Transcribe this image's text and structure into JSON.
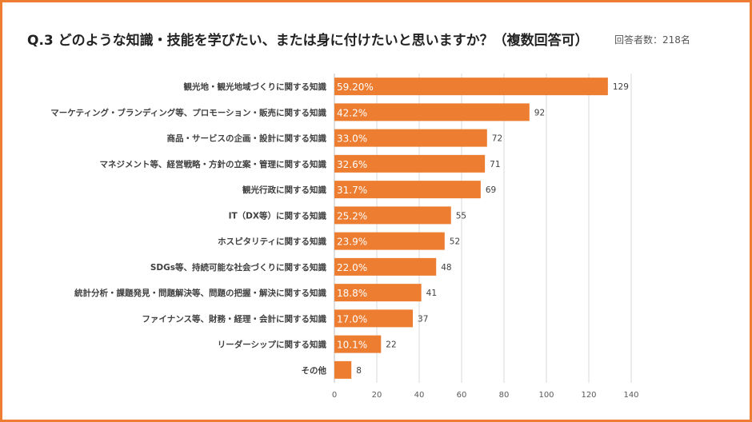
{
  "header": {
    "title": "Q.3 どのような知識・技能を学びたい、または身に付けたいと思いますか？（複数回答可）",
    "respondents": "回答者数：218名"
  },
  "colors": {
    "bar": "#ED7D31",
    "frame": "#ED7D31",
    "grid": "#D9D9D9"
  },
  "chart_data": {
    "type": "bar",
    "orientation": "horizontal",
    "categories": [
      "観光地・観光地域づくりに関する知識",
      "マーケティング・ブランディング等、プロモーション・販売に関する知識",
      "商品・サービスの企画・設計に関する知識",
      "マネジメント等、経営戦略・方針の立案・管理に関する知識",
      "観光行政に関する知識",
      "IT（DX等）に関する知識",
      "ホスピタリティに関する知識",
      "SDGs等、持続可能な社会づくりに関する知識",
      "統計分析・課題発見・問題解決等、問題の把握・解決に関する知識",
      "ファイナンス等、財務・経理・会計に関する知識",
      "リーダーシップに関する知識",
      "その他"
    ],
    "values": [
      129,
      92,
      72,
      71,
      69,
      55,
      52,
      48,
      41,
      37,
      22,
      8
    ],
    "percent_labels": [
      "59.20%",
      "42.2%",
      "33.0%",
      "32.6%",
      "31.7%",
      "25.2%",
      "23.9%",
      "22.0%",
      "18.8%",
      "17.0%",
      "10.1%",
      ""
    ],
    "xlim": [
      0,
      140
    ],
    "xticks": [
      0,
      20,
      40,
      60,
      80,
      100,
      120,
      140
    ],
    "grid": true
  }
}
